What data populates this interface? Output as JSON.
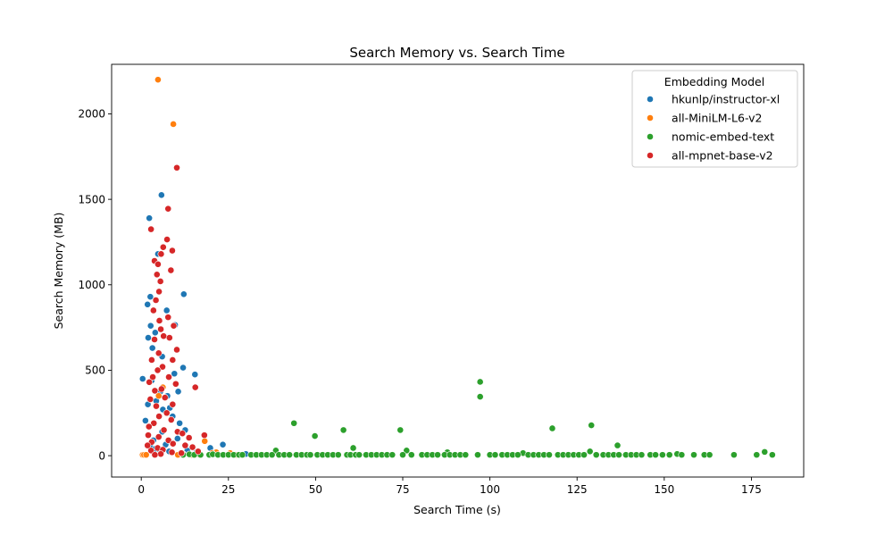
{
  "chart_data": {
    "type": "scatter",
    "title": "Search Memory vs. Search Time",
    "xlabel": "Search Time (s)",
    "ylabel": "Search Memory (MB)",
    "xlim": [
      -8.5,
      190
    ],
    "ylim": [
      -125,
      2290
    ],
    "xticks": [
      0,
      25,
      50,
      75,
      100,
      125,
      150,
      175
    ],
    "yticks": [
      0,
      500,
      1000,
      1500,
      2000
    ],
    "grid": false,
    "legend": {
      "title": "Embedding Model",
      "placement": "top-right"
    },
    "series": [
      {
        "name": "hkunlp/instructor-xl",
        "color": "#1f77b4",
        "points": [
          [
            5.8,
            1525
          ],
          [
            2.3,
            1390
          ],
          [
            1.8,
            885
          ],
          [
            2.6,
            930
          ],
          [
            4.8,
            1180
          ],
          [
            12.2,
            945
          ],
          [
            7.3,
            850
          ],
          [
            9.7,
            765
          ],
          [
            2.7,
            760
          ],
          [
            2.0,
            690
          ],
          [
            4.0,
            720
          ],
          [
            3.2,
            630
          ],
          [
            6.0,
            580
          ],
          [
            12.0,
            515
          ],
          [
            15.4,
            475
          ],
          [
            9.5,
            480
          ],
          [
            3.0,
            440
          ],
          [
            0.4,
            450
          ],
          [
            10.6,
            375
          ],
          [
            5.5,
            375
          ],
          [
            7.5,
            350
          ],
          [
            4.3,
            320
          ],
          [
            1.9,
            300
          ],
          [
            8.2,
            280
          ],
          [
            6.2,
            270
          ],
          [
            11.0,
            190
          ],
          [
            1.2,
            205
          ],
          [
            9.0,
            230
          ],
          [
            12.6,
            150
          ],
          [
            6.0,
            140
          ],
          [
            10.4,
            100
          ],
          [
            23.4,
            65
          ],
          [
            3.5,
            90
          ],
          [
            7.0,
            65
          ],
          [
            2.5,
            60
          ],
          [
            19.8,
            45
          ],
          [
            5.2,
            35
          ],
          [
            13.2,
            30
          ],
          [
            15.9,
            20
          ],
          [
            30.0,
            10
          ],
          [
            8.0,
            25
          ],
          [
            4.0,
            40
          ]
        ]
      },
      {
        "name": "all-MiniLM-L6-v2",
        "color": "#ff7f0e",
        "points": [
          [
            4.8,
            2200
          ],
          [
            9.2,
            1940
          ],
          [
            6.2,
            400
          ],
          [
            5.0,
            350
          ],
          [
            18.2,
            85
          ],
          [
            21.5,
            20
          ],
          [
            25.5,
            15
          ],
          [
            0.4,
            5
          ],
          [
            0.8,
            5
          ],
          [
            1.4,
            5
          ],
          [
            10.5,
            5
          ],
          [
            12.0,
            10
          ],
          [
            14.5,
            5
          ],
          [
            20.3,
            15
          ],
          [
            27.0,
            5
          ],
          [
            16.5,
            8
          ]
        ]
      },
      {
        "name": "nomic-embed-text",
        "color": "#2ca02c",
        "points": [
          [
            97.2,
            432
          ],
          [
            97.2,
            345
          ],
          [
            43.8,
            190
          ],
          [
            129.1,
            178
          ],
          [
            58.0,
            150
          ],
          [
            74.3,
            150
          ],
          [
            117.9,
            160
          ],
          [
            49.8,
            115
          ],
          [
            136.6,
            60
          ],
          [
            60.8,
            45
          ],
          [
            38.6,
            30
          ],
          [
            76.1,
            30
          ],
          [
            87.8,
            20
          ],
          [
            109.5,
            15
          ],
          [
            128.7,
            25
          ],
          [
            178.8,
            22
          ],
          [
            153.7,
            10
          ],
          [
            12.0,
            5
          ],
          [
            13.8,
            8
          ],
          [
            15.2,
            5
          ],
          [
            17.0,
            5
          ],
          [
            19.5,
            5
          ],
          [
            20.5,
            8
          ],
          [
            22.0,
            5
          ],
          [
            23.5,
            5
          ],
          [
            25.0,
            5
          ],
          [
            26.5,
            5
          ],
          [
            28.0,
            5
          ],
          [
            29.0,
            5
          ],
          [
            31.5,
            5
          ],
          [
            33.0,
            5
          ],
          [
            34.5,
            5
          ],
          [
            36.0,
            5
          ],
          [
            37.5,
            5
          ],
          [
            39.5,
            5
          ],
          [
            41.0,
            5
          ],
          [
            42.5,
            5
          ],
          [
            44.5,
            5
          ],
          [
            46.0,
            5
          ],
          [
            47.5,
            5
          ],
          [
            48.5,
            5
          ],
          [
            50.5,
            5
          ],
          [
            52.0,
            5
          ],
          [
            53.5,
            5
          ],
          [
            55.0,
            5
          ],
          [
            56.5,
            5
          ],
          [
            59.0,
            5
          ],
          [
            60.0,
            5
          ],
          [
            61.5,
            5
          ],
          [
            62.5,
            5
          ],
          [
            64.5,
            5
          ],
          [
            66.0,
            5
          ],
          [
            67.5,
            5
          ],
          [
            69.0,
            5
          ],
          [
            70.5,
            5
          ],
          [
            72.0,
            5
          ],
          [
            75.0,
            5
          ],
          [
            77.5,
            5
          ],
          [
            80.5,
            5
          ],
          [
            82.0,
            5
          ],
          [
            83.5,
            5
          ],
          [
            85.0,
            5
          ],
          [
            87.0,
            5
          ],
          [
            88.5,
            5
          ],
          [
            90.0,
            5
          ],
          [
            91.5,
            5
          ],
          [
            93.0,
            5
          ],
          [
            96.5,
            5
          ],
          [
            100.0,
            5
          ],
          [
            101.5,
            5
          ],
          [
            103.5,
            5
          ],
          [
            105.0,
            5
          ],
          [
            106.5,
            5
          ],
          [
            108.0,
            5
          ],
          [
            111.0,
            5
          ],
          [
            112.5,
            5
          ],
          [
            114.0,
            5
          ],
          [
            115.5,
            5
          ],
          [
            117.0,
            5
          ],
          [
            119.5,
            5
          ],
          [
            121.0,
            5
          ],
          [
            122.5,
            5
          ],
          [
            124.0,
            5
          ],
          [
            125.5,
            5
          ],
          [
            127.0,
            5
          ],
          [
            130.5,
            5
          ],
          [
            132.5,
            5
          ],
          [
            134.0,
            5
          ],
          [
            135.5,
            5
          ],
          [
            137.0,
            5
          ],
          [
            139.0,
            5
          ],
          [
            140.5,
            5
          ],
          [
            142.0,
            5
          ],
          [
            143.5,
            5
          ],
          [
            146.0,
            5
          ],
          [
            147.5,
            5
          ],
          [
            149.5,
            5
          ],
          [
            151.5,
            5
          ],
          [
            155.0,
            5
          ],
          [
            158.5,
            5
          ],
          [
            161.5,
            5
          ],
          [
            163.0,
            5
          ],
          [
            170.0,
            5
          ],
          [
            176.5,
            5
          ],
          [
            181.0,
            5
          ]
        ]
      },
      {
        "name": "all-mpnet-base-v2",
        "color": "#d62728",
        "points": [
          [
            7.7,
            1445
          ],
          [
            2.8,
            1325
          ],
          [
            10.2,
            1685
          ],
          [
            7.4,
            1265
          ],
          [
            6.3,
            1220
          ],
          [
            8.9,
            1200
          ],
          [
            5.7,
            1180
          ],
          [
            8.5,
            1085
          ],
          [
            3.8,
            1140
          ],
          [
            4.8,
            1120
          ],
          [
            4.5,
            1060
          ],
          [
            5.5,
            1020
          ],
          [
            5.1,
            960
          ],
          [
            4.2,
            910
          ],
          [
            3.5,
            850
          ],
          [
            7.7,
            810
          ],
          [
            5.2,
            790
          ],
          [
            9.3,
            760
          ],
          [
            5.6,
            740
          ],
          [
            6.4,
            700
          ],
          [
            3.8,
            680
          ],
          [
            8.1,
            690
          ],
          [
            10.2,
            620
          ],
          [
            5.0,
            600
          ],
          [
            9.0,
            560
          ],
          [
            3.0,
            560
          ],
          [
            6.1,
            520
          ],
          [
            4.7,
            500
          ],
          [
            3.3,
            460
          ],
          [
            7.9,
            460
          ],
          [
            2.3,
            430
          ],
          [
            9.9,
            420
          ],
          [
            15.5,
            400
          ],
          [
            5.8,
            390
          ],
          [
            3.9,
            380
          ],
          [
            2.6,
            330
          ],
          [
            6.8,
            340
          ],
          [
            9.0,
            300
          ],
          [
            4.3,
            290
          ],
          [
            7.3,
            250
          ],
          [
            5.1,
            230
          ],
          [
            8.6,
            210
          ],
          [
            3.6,
            190
          ],
          [
            2.2,
            170
          ],
          [
            6.5,
            150
          ],
          [
            10.4,
            140
          ],
          [
            11.8,
            130
          ],
          [
            18.1,
            120
          ],
          [
            5.0,
            110
          ],
          [
            13.7,
            105
          ],
          [
            7.8,
            90
          ],
          [
            3.0,
            80
          ],
          [
            9.1,
            70
          ],
          [
            12.6,
            60
          ],
          [
            14.7,
            50
          ],
          [
            4.7,
            45
          ],
          [
            6.2,
            35
          ],
          [
            2.8,
            30
          ],
          [
            16.3,
            25
          ],
          [
            8.8,
            20
          ],
          [
            11.5,
            15
          ],
          [
            5.6,
            10
          ],
          [
            3.9,
            5
          ],
          [
            1.8,
            60
          ],
          [
            2.0,
            120
          ]
        ]
      }
    ]
  }
}
